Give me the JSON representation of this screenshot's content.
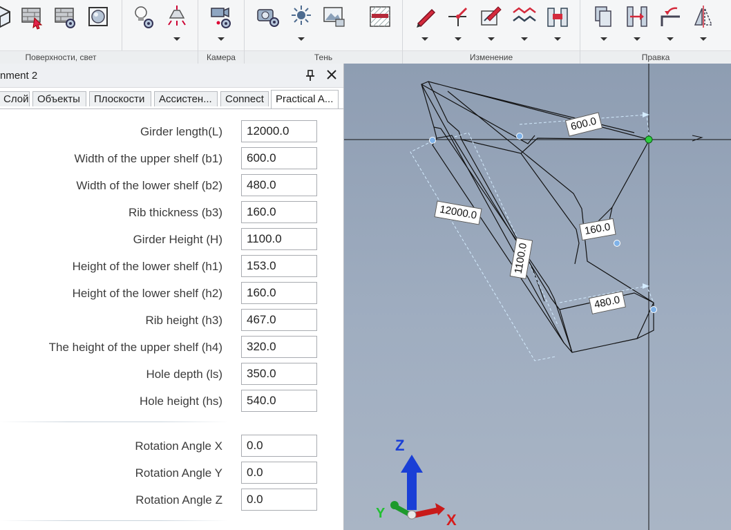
{
  "ribbon": {
    "groups": [
      {
        "label": "Поверхности, свет"
      },
      {
        "label": "Камера"
      },
      {
        "label": "Тень"
      },
      {
        "label": "Изменение"
      },
      {
        "label": "Правка"
      }
    ]
  },
  "panel": {
    "title": "nment 2",
    "tabs": [
      "Слой",
      "Объекты",
      "Плоскости",
      "Ассистен...",
      "Connect",
      "Practical A..."
    ],
    "active_tab": "Practical A...",
    "params": [
      {
        "label": "Girder length(L)",
        "value": "12000.0"
      },
      {
        "label": "Width of the upper shelf (b1)",
        "value": "600.0"
      },
      {
        "label": "Width of the lower shelf (b2)",
        "value": "480.0"
      },
      {
        "label": "Rib thickness (b3)",
        "value": "160.0"
      },
      {
        "label": "Girder Height (H)",
        "value": "1100.0"
      },
      {
        "label": "Height of the lower shelf (h1)",
        "value": "153.0"
      },
      {
        "label": "Height of the lower shelf (h2)",
        "value": "160.0"
      },
      {
        "label": "Rib height (h3)",
        "value": "467.0"
      },
      {
        "label": "The height of the upper shelf (h4)",
        "value": "320.0"
      },
      {
        "label": "Hole depth (ls)",
        "value": "350.0"
      },
      {
        "label": "Hole height (hs)",
        "value": "540.0"
      }
    ],
    "rotation": [
      {
        "label": "Rotation Angle X",
        "value": "0.0"
      },
      {
        "label": "Rotation Angle Y",
        "value": "0.0"
      },
      {
        "label": "Rotation Angle Z",
        "value": "0.0"
      }
    ]
  },
  "viewport": {
    "dimensions": {
      "upper_shelf": "600.0",
      "length": "12000.0",
      "height": "1100.0",
      "rib": "160.0",
      "lower_shelf": "480.0"
    },
    "axes": {
      "z": "Z",
      "y": "Y",
      "x": "X"
    }
  },
  "colors": {
    "viewport_bg": "#9aa8bc",
    "axis_z": "#1a3fd6",
    "axis_y": "#22a832",
    "axis_x": "#d61c1c",
    "snap_point": "#2ecc40",
    "handle_point": "#7fb2e8"
  }
}
